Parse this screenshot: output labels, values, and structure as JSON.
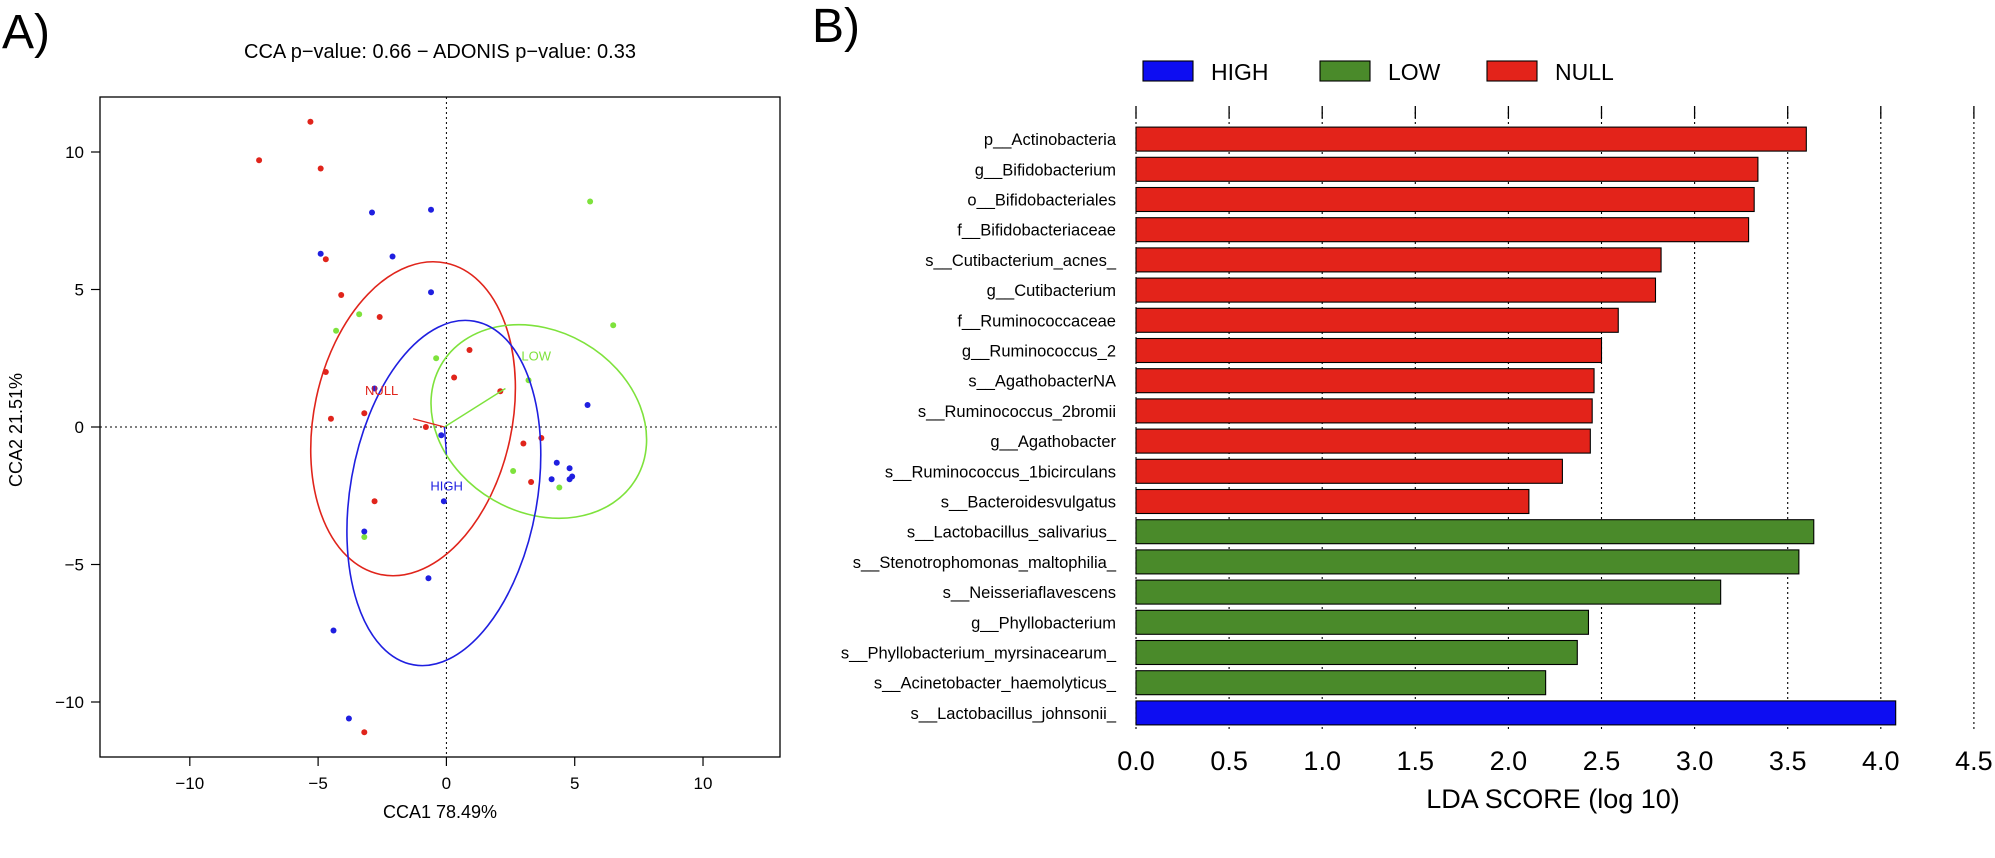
{
  "figure": {
    "panel_a_label": "A)",
    "panel_b_label": "B)"
  },
  "chart_data": [
    {
      "type": "scatter",
      "title": "CCA p−value: 0.66 − ADONIS p−value: 0.33",
      "xlabel": "CCA1 78.49%",
      "ylabel": "CCA2 21.51%",
      "xlim": [
        -13.5,
        13.0
      ],
      "ylim": [
        -12.0,
        12.0
      ],
      "xticks": [
        -10,
        -5,
        0,
        5,
        10
      ],
      "yticks": [
        -10,
        -5,
        0,
        5,
        10
      ],
      "xtick_labels": [
        "−10",
        "−5",
        "0",
        "5",
        "10"
      ],
      "ytick_labels": [
        "−10",
        "−5",
        "0",
        "5",
        "10"
      ],
      "reference_lines": {
        "x": 0,
        "y": 0,
        "style": "dotted"
      },
      "series": [
        {
          "name": "NULL",
          "color": "#e0241b",
          "points": [
            [
              -5.3,
              11.1
            ],
            [
              -7.3,
              9.7
            ],
            [
              -4.9,
              9.4
            ],
            [
              -4.7,
              6.1
            ],
            [
              -4.1,
              4.8
            ],
            [
              -2.6,
              4.0
            ],
            [
              -4.7,
              2.0
            ],
            [
              -3.2,
              0.5
            ],
            [
              -4.5,
              0.3
            ],
            [
              -0.8,
              0.0
            ],
            [
              0.9,
              2.8
            ],
            [
              0.3,
              1.8
            ],
            [
              2.1,
              1.3
            ],
            [
              -2.8,
              -2.7
            ],
            [
              3.3,
              -2.0
            ],
            [
              3.0,
              -0.6
            ],
            [
              3.7,
              -0.4
            ],
            [
              -3.2,
              -11.1
            ]
          ],
          "centroid": [
            -1.3,
            0.3
          ],
          "ellipse": {
            "cx": -1.3,
            "cy": 0.3,
            "rx": 6.2,
            "ry": 3.6,
            "angle_deg": 78
          },
          "label": "NULL"
        },
        {
          "name": "LOW",
          "color": "#7ee23c",
          "points": [
            [
              5.6,
              8.2
            ],
            [
              6.5,
              3.7
            ],
            [
              -3.4,
              4.1
            ],
            [
              -4.3,
              3.5
            ],
            [
              -0.4,
              2.5
            ],
            [
              3.2,
              1.7
            ],
            [
              2.6,
              -1.6
            ],
            [
              4.4,
              -2.2
            ],
            [
              -3.2,
              -4.0
            ]
          ],
          "centroid": [
            2.3,
            1.4
          ],
          "ellipse": {
            "cx": 3.6,
            "cy": 0.2,
            "rx": 4.4,
            "ry": 3.3,
            "angle_deg": -30
          },
          "label": "LOW"
        },
        {
          "name": "HIGH",
          "color": "#1f1fe0",
          "points": [
            [
              -0.6,
              7.9
            ],
            [
              -2.9,
              7.8
            ],
            [
              -4.9,
              6.3
            ],
            [
              -2.1,
              6.2
            ],
            [
              -0.6,
              4.9
            ],
            [
              -2.8,
              1.4
            ],
            [
              -0.2,
              -0.3
            ],
            [
              -0.1,
              -2.7
            ],
            [
              -3.2,
              -3.8
            ],
            [
              -0.7,
              -5.5
            ],
            [
              4.3,
              -1.3
            ],
            [
              4.8,
              -1.5
            ],
            [
              4.9,
              -1.8
            ],
            [
              4.8,
              -1.9
            ],
            [
              4.1,
              -1.9
            ],
            [
              5.5,
              0.8
            ],
            [
              -4.4,
              -7.4
            ],
            [
              -3.8,
              -10.6
            ]
          ],
          "centroid": [
            0.0,
            -1.0
          ],
          "ellipse": {
            "cx": -0.1,
            "cy": -2.4,
            "rx": 6.8,
            "ry": 3.4,
            "angle_deg": 80
          },
          "label": "HIGH"
        }
      ]
    },
    {
      "type": "bar",
      "orientation": "horizontal",
      "xlabel": "LDA SCORE (log 10)",
      "xlim": [
        0.0,
        4.5
      ],
      "xticks": [
        0.0,
        0.5,
        1.0,
        1.5,
        2.0,
        2.5,
        3.0,
        3.5,
        4.0,
        4.5
      ],
      "xtick_labels": [
        "0.0",
        "0.5",
        "1.0",
        "1.5",
        "2.0",
        "2.5",
        "3.0",
        "3.5",
        "4.0",
        "4.5"
      ],
      "grid": "vertical dotted",
      "legend_position": "top",
      "legend": [
        {
          "name": "HIGH",
          "color": "#0d0df2"
        },
        {
          "name": "LOW",
          "color": "#4a8a2a"
        },
        {
          "name": "NULL",
          "color": "#e3231a"
        }
      ],
      "categories": [
        "p__Actinobacteria",
        "g__Bifidobacterium",
        "o__Bifidobacteriales",
        "f__Bifidobacteriaceae",
        "s__Cutibacterium_acnes_",
        "g__Cutibacterium",
        "f__Ruminococcaceae",
        "g__Ruminococcus_2",
        "s__AgathobacterNA",
        "s__Ruminococcus_2bromii",
        "g__Agathobacter",
        "s__Ruminococcus_1bicirculans",
        "s__Bacteroidesvulgatus",
        "s__Lactobacillus_salivarius_",
        "s__Stenotrophomonas_maltophilia_",
        "s__Neisseriaflavescens",
        "g__Phyllobacterium",
        "s__Phyllobacterium_myrsinacearum_",
        "s__Acinetobacter_haemolyticus_",
        "s__Lactobacillus_johnsonii_"
      ],
      "values": [
        3.6,
        3.34,
        3.32,
        3.29,
        2.82,
        2.79,
        2.59,
        2.5,
        2.46,
        2.45,
        2.44,
        2.29,
        2.11,
        3.64,
        3.56,
        3.14,
        2.43,
        2.37,
        2.2,
        4.08
      ],
      "groups": [
        "NULL",
        "NULL",
        "NULL",
        "NULL",
        "NULL",
        "NULL",
        "NULL",
        "NULL",
        "NULL",
        "NULL",
        "NULL",
        "NULL",
        "NULL",
        "LOW",
        "LOW",
        "LOW",
        "LOW",
        "LOW",
        "LOW",
        "HIGH"
      ]
    }
  ]
}
